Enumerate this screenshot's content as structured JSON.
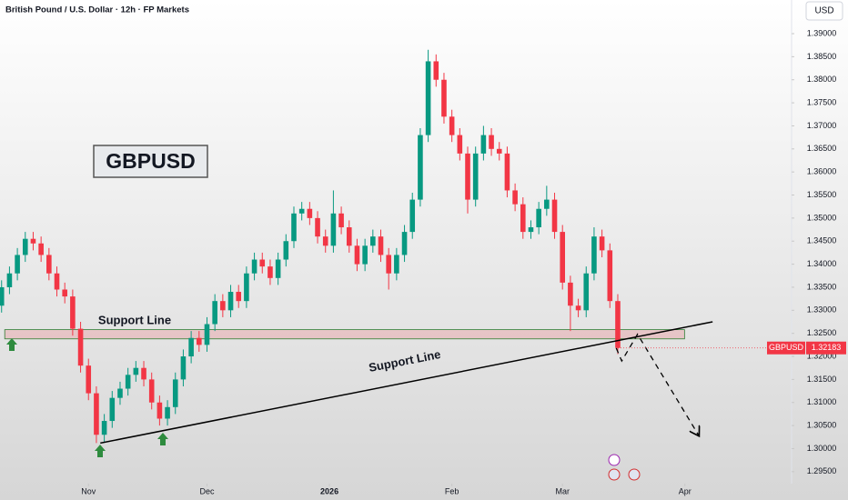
{
  "chart_data": {
    "type": "candlestick",
    "title": "British Pound / U.S. Dollar · 12h · FP Markets",
    "currency": "USD",
    "label_box": "GBPUSD",
    "support_labels": [
      "Support Line",
      "Support Line"
    ],
    "price_tag": {
      "name": "GBPUSD",
      "value": 1.32183,
      "label": "1.32183"
    },
    "up_color": "#089981",
    "down_color": "#f23645",
    "grid": false,
    "xlim": [
      -22.4,
      178
    ],
    "ylim": [
      1.2924,
      1.3973
    ],
    "xticks": [
      {
        "value": 0,
        "label": "Nov"
      },
      {
        "value": 30,
        "label": "Dec"
      },
      {
        "value": 61,
        "label": "2026"
      },
      {
        "value": 92,
        "label": "Feb"
      },
      {
        "value": 120,
        "label": "Mar"
      },
      {
        "value": 151,
        "label": "Apr"
      }
    ],
    "yticks": [
      {
        "value": 1.39,
        "label": "1.39000"
      },
      {
        "value": 1.385,
        "label": "1.38500"
      },
      {
        "value": 1.38,
        "label": "1.38000"
      },
      {
        "value": 1.375,
        "label": "1.37500"
      },
      {
        "value": 1.37,
        "label": "1.37000"
      },
      {
        "value": 1.365,
        "label": "1.36500"
      },
      {
        "value": 1.36,
        "label": "1.36000"
      },
      {
        "value": 1.355,
        "label": "1.35500"
      },
      {
        "value": 1.35,
        "label": "1.35000"
      },
      {
        "value": 1.345,
        "label": "1.34500"
      },
      {
        "value": 1.34,
        "label": "1.34000"
      },
      {
        "value": 1.335,
        "label": "1.33500"
      },
      {
        "value": 1.33,
        "label": "1.33000"
      },
      {
        "value": 1.325,
        "label": "1.32500"
      },
      {
        "value": 1.32,
        "label": "1.32000"
      },
      {
        "value": 1.315,
        "label": "1.31500"
      },
      {
        "value": 1.31,
        "label": "1.31000"
      },
      {
        "value": 1.305,
        "label": "1.30500"
      },
      {
        "value": 1.3,
        "label": "1.30000"
      },
      {
        "value": 1.295,
        "label": "1.29500"
      }
    ],
    "x": [
      -22,
      -20,
      -18,
      -16,
      -14,
      -12,
      -10,
      -8,
      -6,
      -4,
      -2,
      0,
      2,
      4,
      6,
      8,
      10,
      12,
      14,
      16,
      18,
      20,
      22,
      24,
      26,
      28,
      30,
      32,
      34,
      36,
      38,
      40,
      42,
      44,
      46,
      48,
      50,
      52,
      54,
      56,
      58,
      60,
      62,
      64,
      66,
      68,
      70,
      72,
      74,
      76,
      78,
      80,
      82,
      84,
      86,
      88,
      90,
      92,
      94,
      96,
      98,
      100,
      102,
      104,
      106,
      108,
      110,
      112,
      114,
      116,
      118,
      120,
      122,
      124,
      126,
      128,
      130,
      132,
      134
    ],
    "open": [
      1.331,
      1.335,
      1.338,
      1.342,
      1.3455,
      1.3445,
      1.342,
      1.338,
      1.3345,
      1.333,
      1.326,
      1.318,
      1.312,
      1.303,
      1.306,
      1.311,
      1.313,
      1.316,
      1.3175,
      1.315,
      1.31,
      1.3065,
      1.309,
      1.315,
      1.32,
      1.324,
      1.3225,
      1.327,
      1.332,
      1.33,
      1.334,
      1.332,
      1.338,
      1.341,
      1.3395,
      1.337,
      1.341,
      1.345,
      1.351,
      1.352,
      1.35,
      1.346,
      1.344,
      1.351,
      1.348,
      1.344,
      1.34,
      1.344,
      1.346,
      1.342,
      1.338,
      1.342,
      1.347,
      1.354,
      1.368,
      1.384,
      1.38,
      1.372,
      1.368,
      1.364,
      1.354,
      1.364,
      1.368,
      1.365,
      1.364,
      1.356,
      1.353,
      1.347,
      1.348,
      1.352,
      1.354,
      1.347,
      1.336,
      1.331,
      1.33,
      1.338,
      1.346,
      1.343,
      1.332
    ],
    "high": [
      1.3365,
      1.3395,
      1.3435,
      1.347,
      1.347,
      1.346,
      1.3435,
      1.3395,
      1.336,
      1.3345,
      1.3275,
      1.3195,
      1.3135,
      1.3075,
      1.3125,
      1.3145,
      1.3175,
      1.319,
      1.319,
      1.3165,
      1.3115,
      1.3105,
      1.3165,
      1.3215,
      1.3255,
      1.3255,
      1.3285,
      1.3335,
      1.3335,
      1.3355,
      1.3355,
      1.3395,
      1.3425,
      1.3425,
      1.341,
      1.3425,
      1.3465,
      1.3525,
      1.3535,
      1.3535,
      1.3515,
      1.3475,
      1.356,
      1.3525,
      1.3495,
      1.3455,
      1.3455,
      1.3475,
      1.3475,
      1.3435,
      1.3435,
      1.3485,
      1.3555,
      1.3695,
      1.3865,
      1.3855,
      1.3815,
      1.3735,
      1.3695,
      1.3655,
      1.3655,
      1.37,
      1.3695,
      1.3665,
      1.3655,
      1.3575,
      1.3545,
      1.3495,
      1.3535,
      1.357,
      1.3555,
      1.3485,
      1.3375,
      1.3325,
      1.3395,
      1.348,
      1.3475,
      1.3445,
      1.3335
    ],
    "low": [
      1.3295,
      1.3335,
      1.3365,
      1.3405,
      1.343,
      1.3405,
      1.3365,
      1.333,
      1.3315,
      1.3245,
      1.3165,
      1.3105,
      1.3012,
      1.3015,
      1.3045,
      1.3095,
      1.3115,
      1.3145,
      1.3135,
      1.3085,
      1.305,
      1.305,
      1.3075,
      1.3135,
      1.3185,
      1.321,
      1.321,
      1.3255,
      1.3285,
      1.3285,
      1.3305,
      1.3305,
      1.3365,
      1.338,
      1.3355,
      1.3355,
      1.3395,
      1.3435,
      1.3495,
      1.3485,
      1.3445,
      1.3425,
      1.3425,
      1.3465,
      1.3425,
      1.3385,
      1.3385,
      1.3425,
      1.3405,
      1.3345,
      1.3365,
      1.3405,
      1.3455,
      1.3525,
      1.3665,
      1.3785,
      1.3705,
      1.3665,
      1.3625,
      1.351,
      1.3525,
      1.3625,
      1.3635,
      1.3625,
      1.3545,
      1.3515,
      1.3455,
      1.3455,
      1.3465,
      1.3505,
      1.3455,
      1.3345,
      1.3255,
      1.3285,
      1.3285,
      1.3365,
      1.3415,
      1.3305,
      1.3205
    ],
    "close": [
      1.335,
      1.338,
      1.342,
      1.3455,
      1.3445,
      1.342,
      1.338,
      1.3345,
      1.333,
      1.326,
      1.318,
      1.312,
      1.303,
      1.306,
      1.311,
      1.313,
      1.316,
      1.3175,
      1.315,
      1.31,
      1.3065,
      1.309,
      1.315,
      1.32,
      1.324,
      1.3225,
      1.327,
      1.332,
      1.33,
      1.334,
      1.332,
      1.338,
      1.341,
      1.3395,
      1.337,
      1.341,
      1.345,
      1.351,
      1.352,
      1.35,
      1.346,
      1.344,
      1.351,
      1.348,
      1.344,
      1.34,
      1.344,
      1.346,
      1.342,
      1.338,
      1.342,
      1.347,
      1.354,
      1.368,
      1.384,
      1.38,
      1.372,
      1.368,
      1.364,
      1.354,
      1.364,
      1.368,
      1.365,
      1.364,
      1.356,
      1.353,
      1.347,
      1.348,
      1.352,
      1.354,
      1.347,
      1.336,
      1.331,
      1.33,
      1.338,
      1.346,
      1.343,
      1.332,
      1.32183
    ],
    "support_zone": {
      "x": [
        -21.2,
        150.9
      ],
      "y": [
        1.3238,
        1.3258
      ]
    },
    "trendline": {
      "x": [
        3,
        158
      ],
      "y": [
        1.3012,
        1.3275
      ]
    },
    "projection": {
      "x": [
        133.6,
        135,
        139,
        154.6
      ],
      "y": [
        1.3218,
        1.319,
        1.3248,
        1.3027
      ]
    }
  }
}
